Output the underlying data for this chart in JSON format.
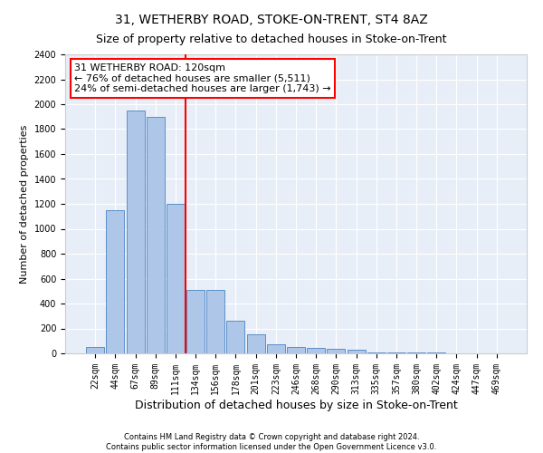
{
  "title": "31, WETHERBY ROAD, STOKE-ON-TRENT, ST4 8AZ",
  "subtitle": "Size of property relative to detached houses in Stoke-on-Trent",
  "xlabel": "Distribution of detached houses by size in Stoke-on-Trent",
  "ylabel": "Number of detached properties",
  "categories": [
    "22sqm",
    "44sqm",
    "67sqm",
    "89sqm",
    "111sqm",
    "134sqm",
    "156sqm",
    "178sqm",
    "201sqm",
    "223sqm",
    "246sqm",
    "268sqm",
    "290sqm",
    "313sqm",
    "335sqm",
    "357sqm",
    "380sqm",
    "402sqm",
    "424sqm",
    "447sqm",
    "469sqm"
  ],
  "values": [
    50,
    1150,
    1950,
    1900,
    1200,
    510,
    510,
    260,
    150,
    75,
    50,
    45,
    40,
    30,
    10,
    10,
    5,
    5,
    3,
    3,
    3
  ],
  "bar_color": "#aec6e8",
  "bar_edge_color": "#5b8fc9",
  "highlight_line_color": "red",
  "annotation_text": "31 WETHERBY ROAD: 120sqm\n← 76% of detached houses are smaller (5,511)\n24% of semi-detached houses are larger (1,743) →",
  "annotation_box_color": "white",
  "annotation_box_edge_color": "red",
  "ylim": [
    0,
    2400
  ],
  "yticks": [
    0,
    200,
    400,
    600,
    800,
    1000,
    1200,
    1400,
    1600,
    1800,
    2000,
    2200,
    2400
  ],
  "footer_line1": "Contains HM Land Registry data © Crown copyright and database right 2024.",
  "footer_line2": "Contains public sector information licensed under the Open Government Licence v3.0.",
  "bg_color": "#e8eef8",
  "grid_color": "white",
  "title_fontsize": 10,
  "subtitle_fontsize": 9,
  "xlabel_fontsize": 9,
  "ylabel_fontsize": 8,
  "annotation_fontsize": 8,
  "tick_fontsize": 7,
  "footer_fontsize": 6
}
